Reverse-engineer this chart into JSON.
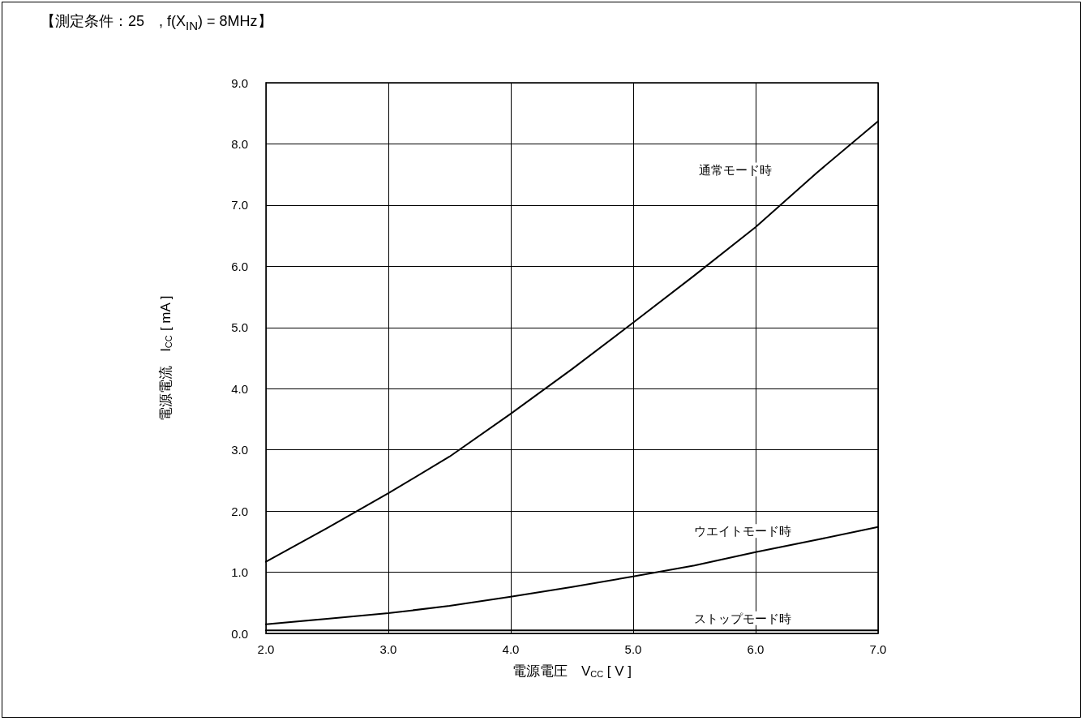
{
  "chart_data": {
    "type": "line",
    "title": "【測定条件：25　, f(X$_{IN}$) = 8MHz】",
    "xlabel": "電源電圧　V$_{CC}$ [ V ]",
    "ylabel": "電源電流　I$_{CC}$ [ mA ]",
    "x": [
      2,
      2.5,
      3,
      3.5,
      4,
      4.5,
      5,
      5.5,
      6,
      6.5,
      7
    ],
    "series": [
      {
        "name": "通常モード時",
        "color": "#000000",
        "values": [
          1.17,
          1.72,
          2.29,
          2.89,
          3.59,
          4.32,
          5.08,
          5.85,
          6.64,
          7.53,
          8.37
        ]
      },
      {
        "name": "ウエイトモード時",
        "color": "#000000",
        "values": [
          0.15,
          0.24,
          0.33,
          0.45,
          0.6,
          0.76,
          0.93,
          1.11,
          1.33,
          1.53,
          1.74
        ]
      },
      {
        "name": "ストップモード時",
        "color": "#000000",
        "values": [
          0.05,
          0.05,
          0.05,
          0.05,
          0.05,
          0.05,
          0.05,
          0.05,
          0.05,
          0.05,
          0.05
        ]
      }
    ],
    "xlim": [
      2,
      7
    ],
    "xticks": [
      {
        "value": 2,
        "label": "2.0"
      },
      {
        "value": 3,
        "label": "3.0"
      },
      {
        "value": 4,
        "label": "4.0"
      },
      {
        "value": 5,
        "label": "5.0"
      },
      {
        "value": 6,
        "label": "6.0"
      },
      {
        "value": 7,
        "label": "7.0"
      }
    ],
    "ylim": [
      0,
      9
    ],
    "yticks": [
      {
        "value": 0,
        "label": "0.0"
      },
      {
        "value": 1,
        "label": "1.0"
      },
      {
        "value": 2,
        "label": "2.0"
      },
      {
        "value": 3,
        "label": "3.0"
      },
      {
        "value": 4,
        "label": "4.0"
      },
      {
        "value": 5,
        "label": "5.0"
      },
      {
        "value": 6,
        "label": "6.0"
      },
      {
        "value": 7,
        "label": "7.0"
      },
      {
        "value": 8,
        "label": "8.0"
      },
      {
        "value": 9,
        "label": "9.0"
      }
    ],
    "grid": true,
    "legend": false,
    "marker": "none",
    "line_style": "solid"
  }
}
